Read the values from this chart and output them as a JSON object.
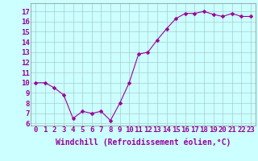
{
  "x": [
    0,
    1,
    2,
    3,
    4,
    5,
    6,
    7,
    8,
    9,
    10,
    11,
    12,
    13,
    14,
    15,
    16,
    17,
    18,
    19,
    20,
    21,
    22,
    23
  ],
  "y": [
    10.0,
    10.0,
    9.5,
    8.8,
    6.5,
    7.2,
    7.0,
    7.2,
    6.3,
    8.0,
    10.0,
    12.8,
    13.0,
    14.2,
    15.3,
    16.3,
    16.8,
    16.8,
    17.0,
    16.7,
    16.5,
    16.8,
    16.5,
    16.5
  ],
  "line_color": "#990099",
  "marker": "D",
  "marker_size": 2.5,
  "bg_color": "#ccffff",
  "grid_color": "#aacccc",
  "xlabel": "Windchill (Refroidissement éolien,°C)",
  "xlabel_color": "#990099",
  "xlabel_fontsize": 7,
  "ylabel_ticks": [
    6,
    7,
    8,
    9,
    10,
    11,
    12,
    13,
    14,
    15,
    16,
    17
  ],
  "xtick_labels": [
    "0",
    "1",
    "2",
    "3",
    "4",
    "5",
    "6",
    "7",
    "8",
    "9",
    "10",
    "11",
    "12",
    "13",
    "14",
    "15",
    "16",
    "17",
    "18",
    "19",
    "20",
    "21",
    "22",
    "23"
  ],
  "ylim": [
    5.8,
    17.8
  ],
  "xlim": [
    -0.5,
    23.5
  ],
  "tick_fontsize": 6.5,
  "tick_color": "#990099"
}
